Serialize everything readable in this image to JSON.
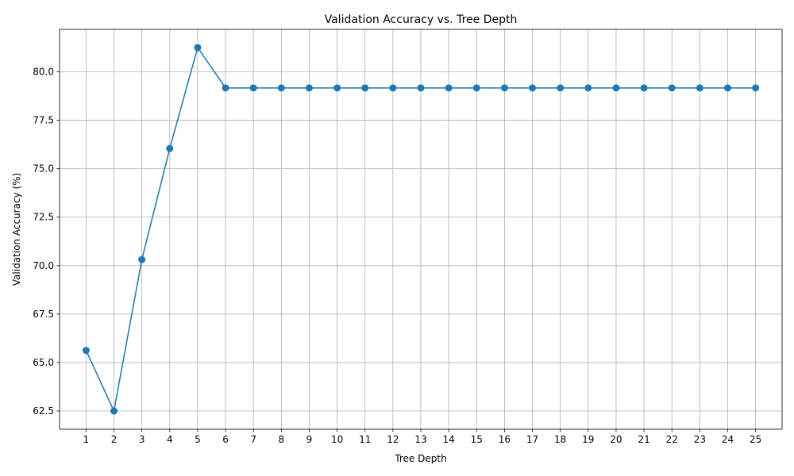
{
  "chart_data": {
    "type": "line",
    "title": "Validation Accuracy vs. Tree Depth",
    "xlabel": "Tree Depth",
    "ylabel": "Validation Accuracy (%)",
    "x": [
      1,
      2,
      3,
      4,
      5,
      6,
      7,
      8,
      9,
      10,
      11,
      12,
      13,
      14,
      15,
      16,
      17,
      18,
      19,
      20,
      21,
      22,
      23,
      24,
      25
    ],
    "series": [
      {
        "values": [
          65.625,
          62.5,
          70.3125,
          76.0417,
          81.25,
          79.1667,
          79.1667,
          79.1667,
          79.1667,
          79.1667,
          79.1667,
          79.1667,
          79.1667,
          79.1667,
          79.1667,
          79.1667,
          79.1667,
          79.1667,
          79.1667,
          79.1667,
          79.1667,
          79.1667,
          79.1667,
          79.1667,
          79.1667
        ],
        "color": "#1f77b4",
        "marker": "circle"
      }
    ],
    "xlim": [
      0.05,
      25.95
    ],
    "ylim": [
      61.56,
      82.19
    ],
    "yticks": [
      62.5,
      65.0,
      67.5,
      70.0,
      72.5,
      75.0,
      77.5,
      80.0
    ],
    "ytick_labels": [
      "62.5",
      "65.0",
      "67.5",
      "70.0",
      "72.5",
      "75.0",
      "77.5",
      "80.0"
    ],
    "grid": true,
    "legend": "none"
  }
}
